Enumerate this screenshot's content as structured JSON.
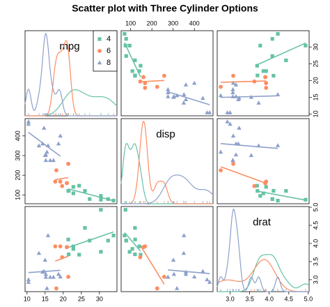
{
  "chart_data": {
    "type": "scatter_matrix",
    "title": "Scatter plot with Three Cylinder Options",
    "variables": [
      {
        "name": "mpg",
        "lim": [
          9.46,
          34.84
        ],
        "ticks": [
          10,
          15,
          20,
          25,
          30
        ]
      },
      {
        "name": "disp",
        "lim": [
          55.1,
          488
        ],
        "ticks": [
          100,
          200,
          300,
          400
        ]
      },
      {
        "name": "drat",
        "lim": [
          2.67,
          5.02
        ],
        "ticks": [
          {
            "value": 3,
            "label": "3.0"
          },
          {
            "value": 3.5,
            "label": "3.5"
          },
          {
            "value": 4,
            "label": "4.0"
          },
          {
            "value": 4.5,
            "label": "4.5"
          },
          {
            "value": 5,
            "label": "5.0"
          }
        ]
      }
    ],
    "legend": "topright",
    "series": [
      {
        "name": "4",
        "color": "#66c2a5",
        "marker": "square",
        "values": [
          [
            22.8,
            24.4,
            22.8,
            32.4,
            30.4,
            33.9,
            21.5,
            27.3,
            26.0,
            30.4,
            21.4
          ],
          [
            108,
            146.7,
            140.8,
            78.7,
            75.7,
            71.1,
            120.1,
            79,
            120.3,
            95.1,
            121
          ],
          [
            3.85,
            3.69,
            3.92,
            4.08,
            4.93,
            4.22,
            3.7,
            4.08,
            4.43,
            3.77,
            4.11
          ]
        ]
      },
      {
        "name": "6",
        "color": "#fc8d62",
        "marker": "circle",
        "values": [
          [
            21.0,
            21.0,
            21.4,
            18.1,
            19.2,
            17.8,
            19.7
          ],
          [
            160,
            160,
            258,
            225,
            167.6,
            167.6,
            145
          ],
          [
            3.9,
            3.9,
            3.08,
            2.76,
            3.92,
            3.92,
            3.62
          ]
        ]
      },
      {
        "name": "8",
        "color": "#8da0cb",
        "marker": "triangle",
        "values": [
          [
            18.7,
            14.3,
            16.4,
            17.3,
            15.2,
            10.4,
            10.4,
            14.7,
            15.5,
            15.2,
            13.3,
            19.2,
            15.8,
            15.0
          ],
          [
            360,
            360,
            275.8,
            275.8,
            275.8,
            472,
            460,
            440,
            318,
            304,
            350,
            400,
            351,
            301
          ],
          [
            3.15,
            3.21,
            3.07,
            3.07,
            3.07,
            2.93,
            3.0,
            3.23,
            2.76,
            3.15,
            3.73,
            3.08,
            4.22,
            3.54
          ]
        ]
      }
    ]
  }
}
